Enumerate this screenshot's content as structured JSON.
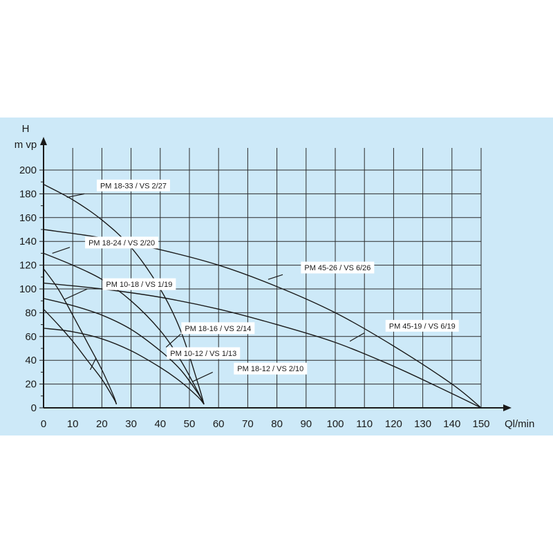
{
  "colors": {
    "background": "#cde9f8",
    "grid": "#2b2b2b",
    "curve": "#1a1a1a",
    "label_bg": "#ffffff"
  },
  "chart_data": {
    "type": "line",
    "title": "",
    "ylabel_lines": [
      "H",
      "m vp"
    ],
    "xlabel": "Ql/min",
    "xlim": [
      0,
      155
    ],
    "ylim": [
      0,
      200
    ],
    "xticks": [
      0,
      10,
      20,
      30,
      40,
      50,
      60,
      70,
      80,
      90,
      100,
      110,
      120,
      130,
      140,
      150
    ],
    "yticks": [
      0,
      20,
      40,
      60,
      80,
      100,
      120,
      140,
      160,
      180,
      200
    ],
    "grid": true,
    "series": [
      {
        "name": "PM 18-33 / VS 2/27",
        "x": [
          0,
          10,
          20,
          30,
          40,
          47,
          53,
          55
        ],
        "y": [
          188,
          175,
          158,
          135,
          100,
          65,
          20,
          3
        ]
      },
      {
        "name": "PM 18-24 / VS 2/20",
        "x": [
          0,
          10,
          20,
          30,
          40,
          47,
          53,
          55
        ],
        "y": [
          130,
          120,
          108,
          90,
          65,
          40,
          13,
          3
        ]
      },
      {
        "name": "PM 18-16 / VS 2/14",
        "x": [
          0,
          10,
          20,
          30,
          40,
          47,
          53,
          55
        ],
        "y": [
          92,
          86,
          78,
          66,
          48,
          32,
          12,
          3
        ]
      },
      {
        "name": "PM 18-12 / VS 2/10",
        "x": [
          0,
          10,
          20,
          30,
          40,
          47,
          53,
          55
        ],
        "y": [
          67,
          64,
          58,
          48,
          34,
          22,
          9,
          3
        ]
      },
      {
        "name": "PM 10-18 / VS 1/19",
        "x": [
          0,
          5,
          10,
          15,
          20,
          24,
          25
        ],
        "y": [
          117,
          100,
          78,
          55,
          32,
          10,
          3
        ]
      },
      {
        "name": "PM 10-12 / VS 1/13",
        "x": [
          0,
          5,
          10,
          15,
          20,
          24,
          25
        ],
        "y": [
          83,
          70,
          56,
          40,
          24,
          8,
          3
        ]
      },
      {
        "name": "PM 45-26 / VS 6/26",
        "x": [
          0,
          20,
          40,
          60,
          80,
          100,
          120,
          140,
          150
        ],
        "y": [
          150,
          143,
          133,
          120,
          102,
          80,
          52,
          20,
          0
        ]
      },
      {
        "name": "PM 45-19 / VS 6/19",
        "x": [
          0,
          20,
          40,
          60,
          80,
          100,
          120,
          140,
          150
        ],
        "y": [
          105,
          100,
          93,
          83,
          70,
          55,
          35,
          12,
          0
        ]
      }
    ],
    "labels": [
      {
        "text": "PM 18-33 / VS 2/27",
        "series": 0,
        "at": [
          18,
          187
        ]
      },
      {
        "text": "PM 18-24 / VS 2/20",
        "series": 1,
        "at": [
          14,
          139
        ]
      },
      {
        "text": "PM 10-18 / VS 1/19",
        "series": 4,
        "at": [
          20,
          104
        ]
      },
      {
        "text": "PM 18-16 / VS 2/14",
        "series": 2,
        "at": [
          47,
          67
        ]
      },
      {
        "text": "PM 10-12 / VS 1/13",
        "series": 5,
        "at": [
          42,
          46
        ]
      },
      {
        "text": "PM 18-12 / VS 2/10",
        "series": 3,
        "at": [
          65,
          33
        ]
      },
      {
        "text": "PM 45-26 / VS 6/26",
        "series": 6,
        "at": [
          88,
          118
        ]
      },
      {
        "text": "PM 45-19 / VS 6/19",
        "series": 7,
        "at": [
          117,
          69
        ]
      }
    ],
    "leaders": [
      {
        "from": [
          14,
          180
        ],
        "to": [
          8,
          177
        ]
      },
      {
        "from": [
          9,
          135
        ],
        "to": [
          3,
          130
        ]
      },
      {
        "from": [
          15,
          100
        ],
        "to": [
          7,
          91
        ]
      },
      {
        "from": [
          47,
          62
        ],
        "to": [
          42,
          51
        ]
      },
      {
        "from": [
          18,
          42
        ],
        "to": [
          16,
          32
        ]
      },
      {
        "from": [
          58,
          30
        ],
        "to": [
          51,
          22
        ]
      },
      {
        "from": [
          82,
          112
        ],
        "to": [
          77,
          108
        ]
      },
      {
        "from": [
          110,
          63
        ],
        "to": [
          105,
          56
        ]
      }
    ]
  }
}
